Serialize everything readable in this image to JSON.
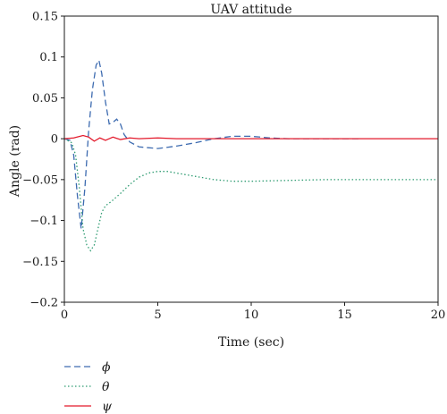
{
  "chart_data": {
    "type": "line",
    "title": "UAV attitude",
    "xlabel": "Time (sec)",
    "ylabel": "Angle (rad)",
    "xlim": [
      0,
      20
    ],
    "ylim": [
      -0.2,
      0.15
    ],
    "xticks": [
      0,
      5,
      10,
      15,
      20
    ],
    "xtick_labels": [
      "0",
      "5",
      "10",
      "15",
      "20"
    ],
    "yticks": [
      0.15,
      0.1,
      0.05,
      0,
      -0.05,
      -0.1,
      -0.15,
      -0.2
    ],
    "ytick_labels": [
      "0.15",
      "0.1",
      "0.05",
      "0",
      "−0.05",
      "−0.1",
      "−0.15",
      "−0.2"
    ],
    "grid": false,
    "legend_position": "below",
    "series": [
      {
        "name": "ϕ",
        "color": "#3d6bb0",
        "style": "dashed",
        "x": [
          0,
          0.3,
          0.5,
          0.7,
          0.9,
          1.1,
          1.3,
          1.5,
          1.7,
          1.85,
          2.0,
          2.2,
          2.4,
          2.6,
          2.8,
          3.0,
          3.2,
          3.5,
          4.0,
          5.0,
          6.0,
          7.0,
          8.0,
          9.0,
          10.0,
          11.0,
          12.0,
          13.0,
          14.0,
          15.0,
          15.8
        ],
        "y": [
          0,
          -0.002,
          -0.02,
          -0.07,
          -0.11,
          -0.06,
          0.01,
          0.06,
          0.09,
          0.096,
          0.08,
          0.045,
          0.018,
          0.02,
          0.024,
          0.018,
          0.005,
          -0.004,
          -0.01,
          -0.012,
          -0.009,
          -0.005,
          0,
          0.003,
          0.003,
          0.001,
          0,
          0,
          0,
          0,
          0
        ]
      },
      {
        "name": "θ",
        "color": "#2f9c72",
        "style": "dotted",
        "x": [
          0,
          0.4,
          0.6,
          0.8,
          1.0,
          1.2,
          1.4,
          1.6,
          1.8,
          2.0,
          2.2,
          2.5,
          3.0,
          3.5,
          4.0,
          4.5,
          5.0,
          5.5,
          6.0,
          7.0,
          8.0,
          9.0,
          10.0,
          12.0,
          14.0,
          16.0,
          18.0,
          20.0
        ],
        "y": [
          0,
          -0.005,
          -0.02,
          -0.06,
          -0.11,
          -0.13,
          -0.137,
          -0.13,
          -0.11,
          -0.09,
          -0.082,
          -0.077,
          -0.067,
          -0.056,
          -0.047,
          -0.042,
          -0.04,
          -0.04,
          -0.042,
          -0.046,
          -0.05,
          -0.052,
          -0.052,
          -0.051,
          -0.05,
          -0.05,
          -0.05,
          -0.05
        ]
      },
      {
        "name": "ψ",
        "color": "#e3192b",
        "style": "solid",
        "x": [
          0,
          0.5,
          1.0,
          1.3,
          1.6,
          1.9,
          2.2,
          2.6,
          3.0,
          3.5,
          4.0,
          5.0,
          6.0,
          8.0,
          10.0,
          15.0,
          20.0
        ],
        "y": [
          0,
          0.001,
          0.004,
          0.002,
          -0.003,
          0.001,
          -0.002,
          0.002,
          -0.001,
          0.001,
          0,
          0.001,
          0,
          0,
          0,
          0,
          0
        ]
      }
    ]
  }
}
